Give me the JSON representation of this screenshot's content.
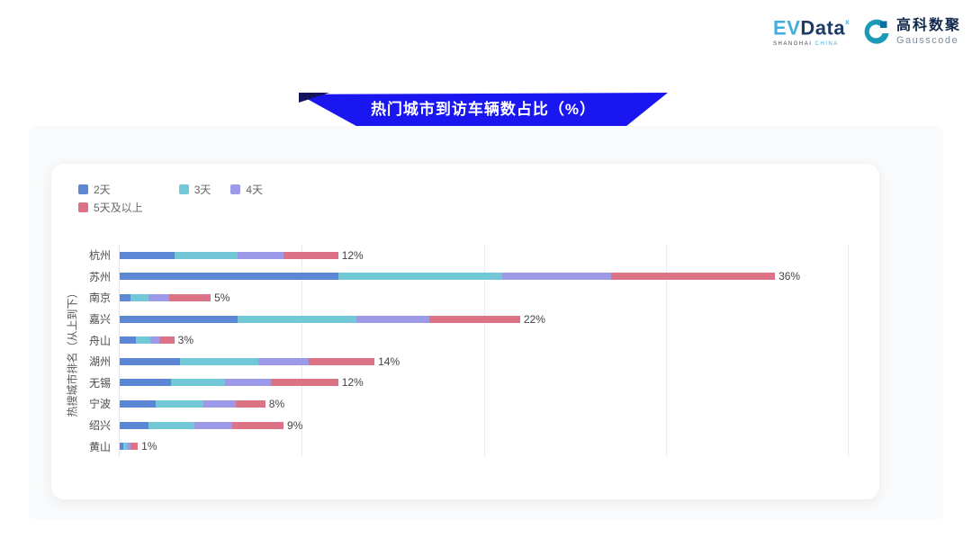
{
  "header": {
    "evdata_logo": {
      "ev": "EV",
      "data": "Data",
      "sup": "ˣ",
      "sub_dark": "SHANGHAI",
      "sub_lite": "CHINA"
    },
    "gausscode_logo": {
      "cn": "高科数聚",
      "en": "Gausscode",
      "icon_color": "#1b9ab8",
      "icon_dark": "#0d6fa0"
    }
  },
  "banner": {
    "title": "热门城市到访车辆数占比（%）",
    "color": "#1a16ef"
  },
  "chart_data": {
    "type": "bar",
    "orientation": "horizontal",
    "stacked": true,
    "title": "热门城市到访车辆数占比（%）",
    "ylabel": "热搜城市排名（从上到下）",
    "xlabel": "",
    "xlim": [
      0,
      40
    ],
    "grid_step": 10,
    "grid": true,
    "legend_position": "top-left",
    "legend_rows": [
      [
        "2天",
        "3天",
        "4天"
      ],
      [
        "5天及以上"
      ]
    ],
    "categories": [
      "杭州",
      "苏州",
      "南京",
      "嘉兴",
      "舟山",
      "湖州",
      "无锡",
      "宁波",
      "绍兴",
      "黄山"
    ],
    "series": [
      {
        "name": "2天",
        "color": "#5b87d5",
        "values": [
          3.0,
          12.0,
          0.6,
          6.5,
          0.9,
          3.3,
          2.8,
          2.0,
          1.6,
          0.2
        ]
      },
      {
        "name": "3天",
        "color": "#73c8d8",
        "values": [
          3.5,
          9.0,
          1.0,
          6.5,
          0.8,
          4.3,
          3.0,
          2.6,
          2.5,
          0.2
        ]
      },
      {
        "name": "4天",
        "color": "#9c9ae8",
        "values": [
          2.5,
          6.0,
          1.1,
          4.0,
          0.5,
          2.8,
          2.5,
          1.8,
          2.1,
          0.2
        ]
      },
      {
        "name": "5天及以上",
        "color": "#db7286",
        "values": [
          3.0,
          9.0,
          2.3,
          5.0,
          0.8,
          3.6,
          3.7,
          1.6,
          2.8,
          0.4
        ]
      }
    ],
    "total_labels": [
      "12%",
      "36%",
      "5%",
      "22%",
      "3%",
      "14%",
      "12%",
      "8%",
      "9%",
      "1%"
    ]
  }
}
